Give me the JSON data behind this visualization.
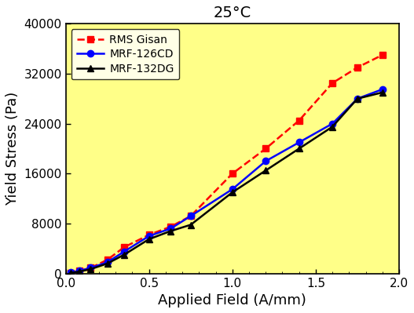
{
  "title": "25°C",
  "xlabel": "Applied Field (A/mm)",
  "ylabel": "Yield Stress (Pa)",
  "xlim": [
    0.0,
    2.0
  ],
  "ylim": [
    0,
    40000
  ],
  "yticks": [
    0,
    8000,
    16000,
    24000,
    32000,
    40000
  ],
  "xticks": [
    0.0,
    0.5,
    1.0,
    1.5,
    2.0
  ],
  "background_color": "#ffff88",
  "series": [
    {
      "label": "RMS Gisan",
      "color": "#ff0000",
      "linestyle": "--",
      "marker": "s",
      "markersize": 6,
      "x": [
        0.03,
        0.08,
        0.15,
        0.25,
        0.35,
        0.5,
        0.63,
        0.75,
        1.0,
        1.2,
        1.4,
        1.6,
        1.75,
        1.9
      ],
      "y": [
        100,
        400,
        900,
        2200,
        4200,
        6200,
        7500,
        9200,
        16000,
        20000,
        24500,
        30500,
        33000,
        35000
      ]
    },
    {
      "label": "MRF-126CD",
      "color": "#0000ff",
      "linestyle": "-",
      "marker": "o",
      "markersize": 6,
      "x": [
        0.03,
        0.08,
        0.15,
        0.25,
        0.35,
        0.5,
        0.63,
        0.75,
        1.0,
        1.2,
        1.4,
        1.6,
        1.75,
        1.9
      ],
      "y": [
        150,
        400,
        900,
        1800,
        3500,
        6000,
        7200,
        9200,
        13500,
        18000,
        21000,
        24000,
        28000,
        29500
      ]
    },
    {
      "label": "MRF-132DG",
      "color": "#000000",
      "linestyle": "-",
      "marker": "^",
      "markersize": 6,
      "x": [
        0.03,
        0.08,
        0.15,
        0.25,
        0.35,
        0.5,
        0.63,
        0.75,
        1.0,
        1.2,
        1.4,
        1.6,
        1.75,
        1.9
      ],
      "y": [
        100,
        300,
        700,
        1600,
        3000,
        5500,
        6800,
        7800,
        13000,
        16500,
        20000,
        23500,
        28000,
        29000
      ]
    }
  ]
}
